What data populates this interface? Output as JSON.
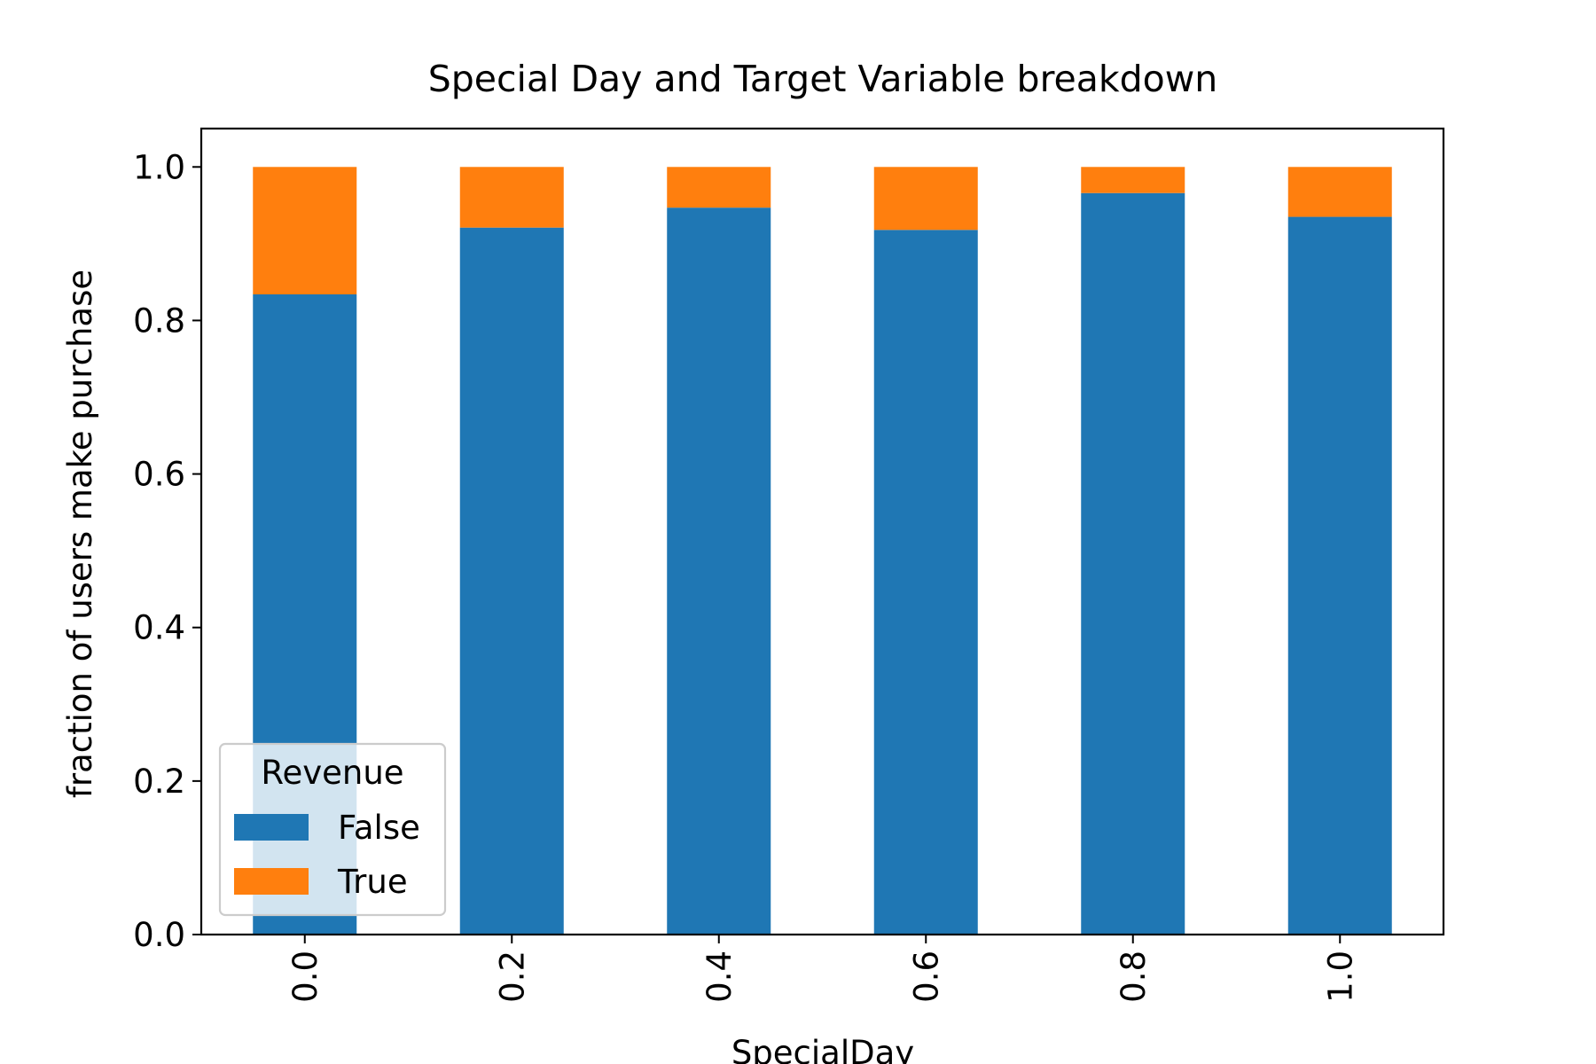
{
  "chart_data": {
    "type": "bar",
    "stacked": true,
    "title": "Special Day and Target Variable breakdown",
    "xlabel": "SpecialDay",
    "ylabel": "fraction of users make purchase",
    "categories": [
      "0.0",
      "0.2",
      "0.4",
      "0.6",
      "0.8",
      "1.0"
    ],
    "series": [
      {
        "name": "False",
        "color": "#1f77b4",
        "values": [
          0.834,
          0.921,
          0.947,
          0.918,
          0.966,
          0.935
        ]
      },
      {
        "name": "True",
        "color": "#ff7f0e",
        "values": [
          0.166,
          0.079,
          0.053,
          0.082,
          0.034,
          0.065
        ]
      }
    ],
    "ylim": [
      0,
      1.05
    ],
    "yticks": [
      "0.0",
      "0.2",
      "0.4",
      "0.6",
      "0.8",
      "1.0"
    ],
    "grid": false,
    "legend": {
      "title": "Revenue",
      "position": "lower-left"
    }
  }
}
